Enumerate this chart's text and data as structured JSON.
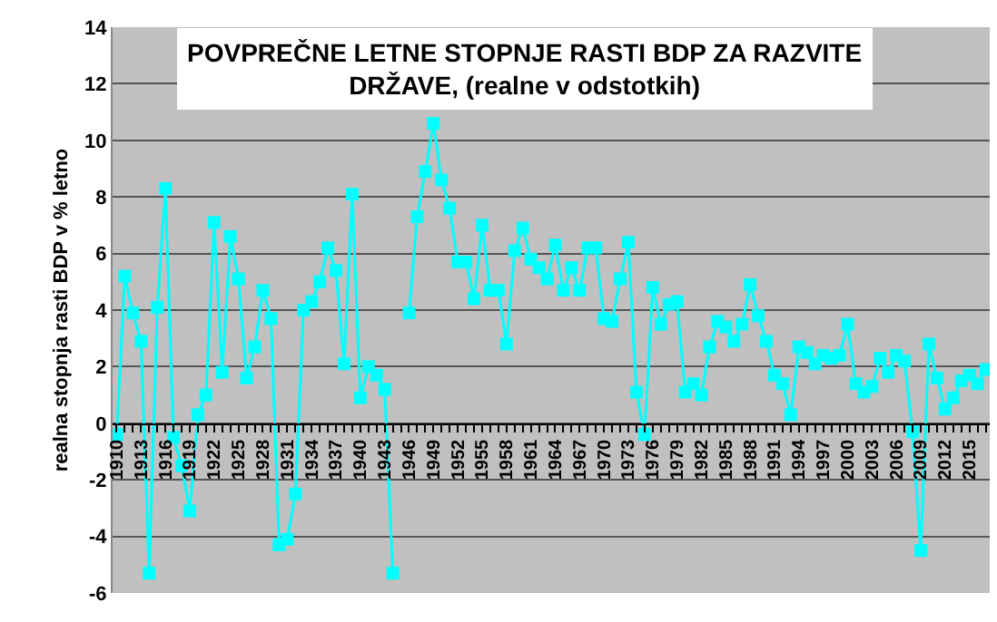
{
  "chart_data": {
    "type": "line",
    "title": "POVPREČNE LETNE STOPNJE RASTI BDP ZA RAZVITE DRŽAVE, (realne v odstotkih)",
    "ylabel": "realna stopnja rasti BDP v % letno",
    "x": [
      1910,
      1911,
      1912,
      1913,
      1914,
      1915,
      1916,
      1917,
      1918,
      1919,
      1920,
      1921,
      1922,
      1923,
      1924,
      1925,
      1926,
      1927,
      1928,
      1929,
      1930,
      1931,
      1932,
      1933,
      1934,
      1935,
      1936,
      1937,
      1938,
      1939,
      1940,
      1941,
      1942,
      1943,
      1944,
      1945,
      1946,
      1947,
      1948,
      1949,
      1950,
      1951,
      1952,
      1953,
      1954,
      1955,
      1956,
      1957,
      1958,
      1959,
      1960,
      1961,
      1962,
      1963,
      1964,
      1965,
      1966,
      1967,
      1968,
      1969,
      1970,
      1971,
      1972,
      1973,
      1974,
      1975,
      1976,
      1977,
      1978,
      1979,
      1980,
      1981,
      1982,
      1983,
      1984,
      1985,
      1986,
      1987,
      1988,
      1989,
      1990,
      1991,
      1992,
      1993,
      1994,
      1995,
      1996,
      1997,
      1998,
      1999,
      2000,
      2001,
      2002,
      2003,
      2004,
      2005,
      2006,
      2007,
      2008,
      2009,
      2010,
      2011,
      2012,
      2013,
      2014,
      2015,
      2016,
      2017
    ],
    "series": [
      {
        "color": "#00ffff",
        "values": [
          -0.4,
          5.2,
          3.9,
          2.9,
          -5.3,
          4.1,
          8.3,
          -0.5,
          -1.5,
          -3.1,
          0.3,
          1.0,
          7.1,
          1.8,
          6.6,
          5.1,
          1.6,
          2.7,
          4.7,
          3.7,
          -4.3,
          -4.1,
          -2.5,
          4.0,
          4.3,
          5.0,
          6.2,
          5.4,
          2.1,
          8.1,
          0.9,
          2.0,
          1.7,
          1.2,
          -5.3,
          null,
          3.9,
          7.3,
          8.9,
          10.6,
          8.6,
          7.6,
          5.7,
          5.7,
          4.4,
          7.0,
          4.7,
          4.7,
          2.8,
          6.1,
          6.9,
          5.8,
          5.5,
          5.1,
          6.3,
          4.7,
          5.5,
          4.7,
          6.2,
          6.2,
          3.7,
          3.6,
          5.1,
          6.4,
          1.1,
          -0.4,
          4.8,
          3.5,
          4.2,
          4.3,
          1.1,
          1.4,
          1.0,
          2.7,
          3.6,
          3.4,
          2.9,
          3.5,
          4.9,
          3.8,
          2.9,
          1.7,
          1.4,
          0.3,
          2.7,
          2.5,
          2.1,
          2.4,
          2.3,
          2.4,
          3.5,
          1.4,
          1.1,
          1.3,
          2.3,
          1.8,
          2.4,
          2.2,
          -0.3,
          -4.5,
          2.8,
          1.6,
          0.5,
          0.9,
          1.5,
          1.7,
          1.4,
          1.9
        ]
      }
    ],
    "xlim": [
      1909.5,
      2017.5
    ],
    "xticks": [
      1910,
      1913,
      1916,
      1919,
      1922,
      1925,
      1928,
      1931,
      1934,
      1937,
      1940,
      1943,
      1946,
      1949,
      1952,
      1955,
      1958,
      1961,
      1964,
      1967,
      1970,
      1973,
      1976,
      1979,
      1982,
      1985,
      1988,
      1991,
      1994,
      1997,
      2000,
      2003,
      2006,
      2009,
      2012,
      2015
    ],
    "ylim": [
      -6,
      14
    ],
    "yticks": [
      -6,
      -4,
      -2,
      0,
      2,
      4,
      6,
      8,
      10,
      12,
      14
    ],
    "grid": "y",
    "marker": "square",
    "line_style": "solid"
  }
}
